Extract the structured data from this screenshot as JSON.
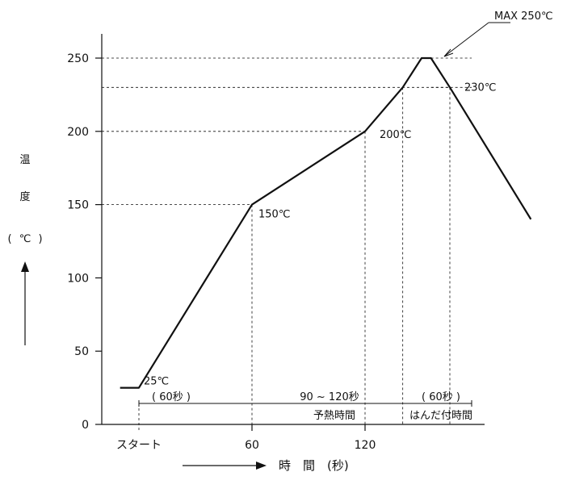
{
  "chart_data": {
    "type": "line",
    "ylabel": [
      "温",
      "度",
      "(",
      "℃",
      ")"
    ],
    "xlabel": "時　間　(秒)",
    "ylim": [
      0,
      265
    ],
    "y_ticks": [
      0,
      50,
      100,
      150,
      200,
      250
    ],
    "x_ticks": [
      {
        "value": 0,
        "label": "スタート"
      },
      {
        "value": 60,
        "label": "60"
      },
      {
        "value": 120,
        "label": "120"
      }
    ],
    "series": [
      {
        "x": [
          -10,
          0,
          60,
          120,
          140,
          150,
          155,
          165,
          208
        ],
        "y": [
          25,
          25,
          150,
          200,
          230,
          250,
          250,
          230,
          140
        ]
      }
    ],
    "point_labels": [
      {
        "x": 0,
        "y": 25,
        "text": "25℃"
      },
      {
        "x": 60,
        "y": 150,
        "text": "150℃"
      },
      {
        "x": 120,
        "y": 200,
        "text": "200℃"
      },
      {
        "x": 165,
        "y": 230,
        "text": "230℃"
      },
      {
        "x": 152,
        "y": 250,
        "text": "MAX 250℃"
      }
    ],
    "intervals": [
      {
        "label": "( 60秒 )"
      },
      {
        "label": "90 ~ 120秒",
        "sublabel": "予熱時間"
      },
      {
        "label": "( 60秒 )",
        "sublabel": "はんだ付時間"
      }
    ]
  }
}
